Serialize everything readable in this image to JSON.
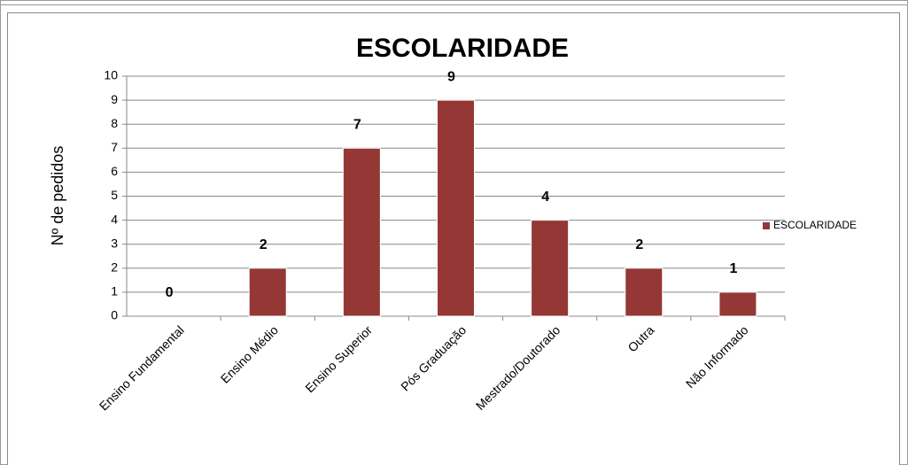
{
  "chart_data": {
    "type": "bar",
    "title": "ESCOLARIDADE",
    "y_label": "Nº de pedidos",
    "categories": [
      "Ensino Fundamental",
      "Ensino Médio",
      "Ensino Superior",
      "Pós Graduação",
      "Mestrado/Doutorado",
      "Outra",
      "Não Informado"
    ],
    "series": [
      {
        "name": "ESCOLARIDADE",
        "color": "#953735",
        "values": [
          0,
          2,
          7,
          9,
          4,
          2,
          1
        ]
      }
    ],
    "ylim": [
      0,
      10
    ],
    "yticks": [
      0,
      1,
      2,
      3,
      4,
      5,
      6,
      7,
      8,
      9,
      10
    ],
    "grid": true,
    "legend": "right"
  }
}
